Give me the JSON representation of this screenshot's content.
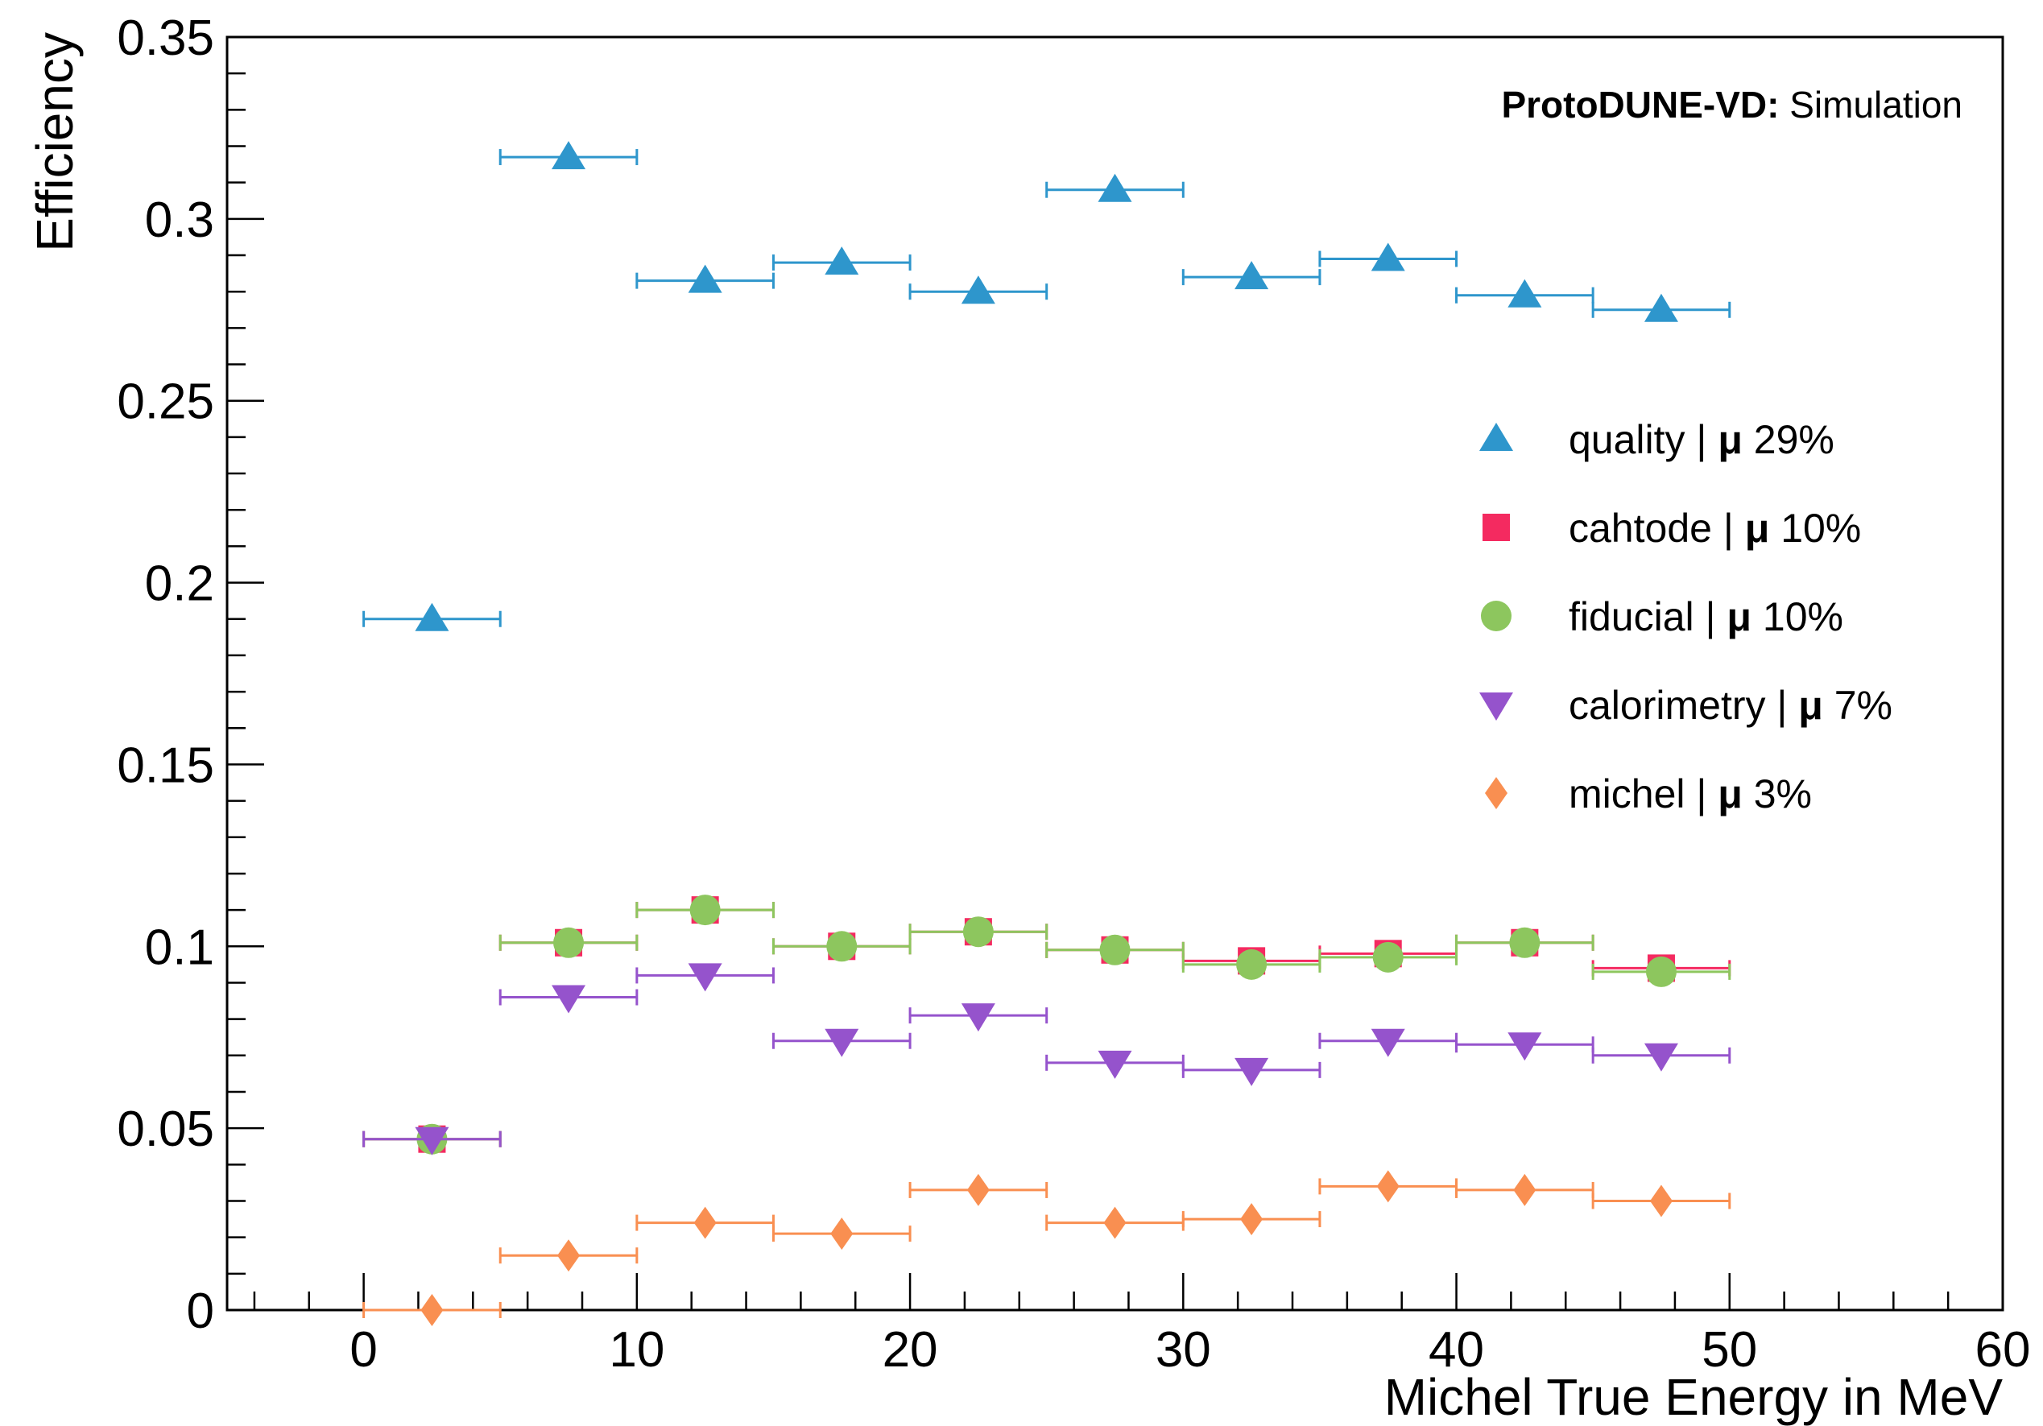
{
  "chart_data": {
    "type": "scatter",
    "annotation": {
      "bold": "ProtoDUNE-VD:",
      "normal": " Simulation"
    },
    "xlabel": "Michel True Energy in MeV",
    "ylabel": "Efficiency",
    "xlim": [
      -5,
      60
    ],
    "ylim": [
      0,
      0.35
    ],
    "x_ticks": [
      0,
      10,
      20,
      30,
      40,
      50,
      60
    ],
    "y_ticks": [
      0,
      0.05,
      0.1,
      0.15,
      0.2,
      0.25,
      0.3,
      0.35
    ],
    "x_tick_labels": [
      "0",
      "10",
      "20",
      "30",
      "40",
      "50",
      "60"
    ],
    "y_tick_labels": [
      "0",
      "0.05",
      "0.1",
      "0.15",
      "0.2",
      "0.25",
      "0.3",
      "0.35"
    ],
    "legend_position": "right",
    "grid": false,
    "bin_half_width": 2.5,
    "x": [
      2.5,
      7.5,
      12.5,
      17.5,
      22.5,
      27.5,
      32.5,
      37.5,
      42.5,
      47.5
    ],
    "series": [
      {
        "name": "quality",
        "marker": "triangle-up",
        "color": "#2e96cc",
        "mean_label": "29%",
        "values": [
          0.19,
          0.317,
          0.283,
          0.288,
          0.28,
          0.308,
          0.284,
          0.289,
          0.279,
          0.275
        ]
      },
      {
        "name": "cahtode",
        "marker": "square",
        "color": "#f42a60",
        "mean_label": "10%",
        "values": [
          0.047,
          0.101,
          0.11,
          0.1,
          0.104,
          0.099,
          0.096,
          0.098,
          0.101,
          0.094
        ]
      },
      {
        "name": "fiducial",
        "marker": "circle",
        "color": "#8dc65e",
        "mean_label": "10%",
        "values": [
          0.047,
          0.101,
          0.11,
          0.1,
          0.104,
          0.099,
          0.095,
          0.097,
          0.101,
          0.093
        ]
      },
      {
        "name": "calorimetry",
        "marker": "triangle-down",
        "color": "#9553cc",
        "mean_label": "7%",
        "values": [
          0.047,
          0.086,
          0.092,
          0.074,
          0.081,
          0.068,
          0.066,
          0.074,
          0.073,
          0.07
        ]
      },
      {
        "name": "michel",
        "marker": "diamond",
        "color": "#f98f51",
        "mean_label": "3%",
        "values": [
          0.0,
          0.015,
          0.024,
          0.021,
          0.033,
          0.024,
          0.025,
          0.034,
          0.033,
          0.03
        ]
      }
    ],
    "legend_separator": " | ",
    "legend_mu": "μ"
  }
}
